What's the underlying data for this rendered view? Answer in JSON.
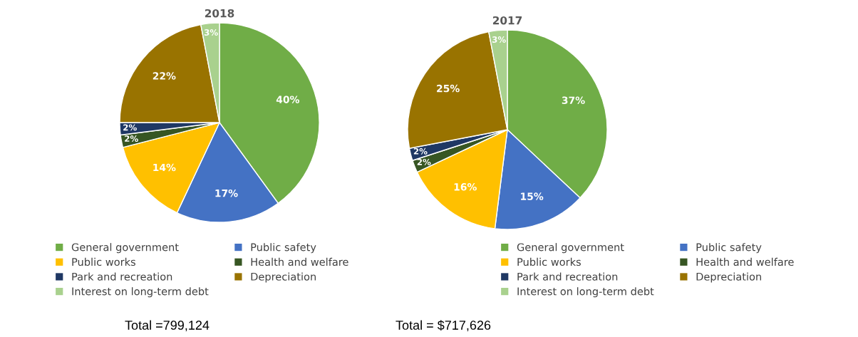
{
  "chart_data": [
    {
      "type": "pie",
      "title": "2018",
      "categories": [
        "General government",
        "Public safety",
        "Public works",
        "Health and welfare",
        "Park and recreation",
        "Depreciation",
        "Interest on long-term debt"
      ],
      "values": [
        40,
        17,
        14,
        2,
        2,
        22,
        3
      ],
      "value_labels": [
        "40%",
        "17%",
        "14%",
        "2%",
        "2%",
        "22%",
        "3%"
      ],
      "colors": [
        "#70ad47",
        "#4472c4",
        "#ffc000",
        "#375623",
        "#1f3864",
        "#997300",
        "#a9d18e"
      ],
      "legend": "bottom",
      "annotations": [
        "Total =799,124"
      ]
    },
    {
      "type": "pie",
      "title": "2017",
      "categories": [
        "General government",
        "Public safety",
        "Public works",
        "Health and welfare",
        "Park and recreation",
        "Depreciation",
        "Interest on long-term debt"
      ],
      "values": [
        37,
        15,
        16,
        2,
        2,
        25,
        3
      ],
      "value_labels": [
        "37%",
        "15%",
        "16%",
        "2%",
        "2%",
        "25%",
        "3%"
      ],
      "colors": [
        "#70ad47",
        "#4472c4",
        "#ffc000",
        "#375623",
        "#1f3864",
        "#997300",
        "#a9d18e"
      ],
      "legend": "bottom",
      "annotations": [
        "Total = $717,626"
      ]
    }
  ]
}
